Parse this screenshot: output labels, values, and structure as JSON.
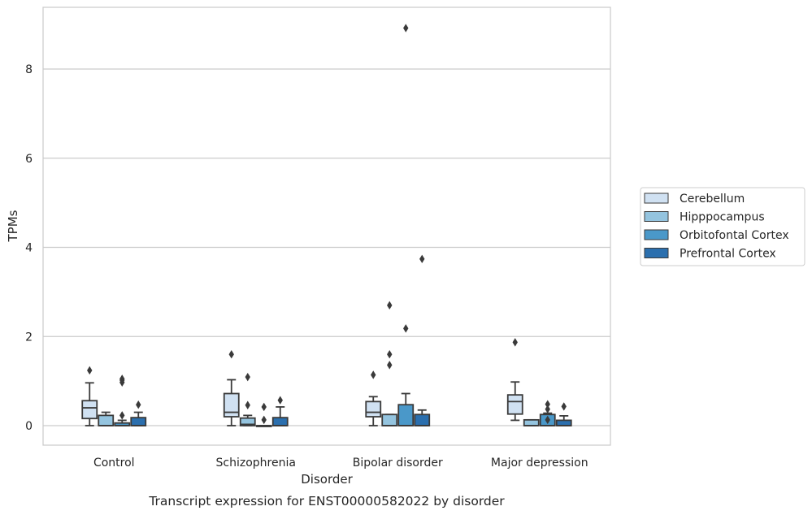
{
  "chart_data": {
    "type": "box",
    "title": "",
    "caption": "Transcript expression for ENST00000582022 by disorder",
    "xlabel": "Disorder",
    "ylabel": "TPMs",
    "ylim": [
      -0.42,
      9.3
    ],
    "yticks": [
      0,
      2,
      4,
      6,
      8
    ],
    "grid": true,
    "legend_position": "right",
    "categories": [
      "Control",
      "Schizophrenia",
      "Bipolar disorder",
      "Major depression"
    ],
    "series": [
      {
        "name": "Cerebellum",
        "color": "#d0e1f2",
        "boxes": [
          {
            "whislo": 0.0,
            "q1": 0.16,
            "med": 0.4,
            "q3": 0.56,
            "whishi": 0.96,
            "fliers": [
              1.24
            ]
          },
          {
            "whislo": 0.0,
            "q1": 0.2,
            "med": 0.3,
            "q3": 0.72,
            "whishi": 1.03,
            "fliers": [
              1.6
            ]
          },
          {
            "whislo": 0.0,
            "q1": 0.2,
            "med": 0.3,
            "q3": 0.54,
            "whishi": 0.65,
            "fliers": [
              1.14
            ]
          },
          {
            "whislo": 0.12,
            "q1": 0.26,
            "med": 0.54,
            "q3": 0.69,
            "whishi": 0.98,
            "fliers": [
              1.87
            ]
          }
        ]
      },
      {
        "name": "Hipppocampus",
        "color": "#94c4df",
        "boxes": [
          {
            "whislo": 0.0,
            "q1": 0.0,
            "med": 0.0,
            "q3": 0.23,
            "whishi": 0.3,
            "fliers": []
          },
          {
            "whislo": 0.0,
            "q1": 0.0,
            "med": 0.03,
            "q3": 0.17,
            "whishi": 0.23,
            "fliers": [
              0.46,
              1.09
            ]
          },
          {
            "whislo": 0.0,
            "q1": 0.0,
            "med": 0.0,
            "q3": 0.25,
            "whishi": 0.25,
            "fliers": [
              1.36,
              1.6,
              2.7
            ]
          },
          {
            "whislo": 0.0,
            "q1": 0.0,
            "med": 0.0,
            "q3": 0.13,
            "whishi": 0.13,
            "fliers": []
          }
        ]
      },
      {
        "name": "Orbitofontal Cortex",
        "color": "#4a98c9",
        "boxes": [
          {
            "whislo": 0.0,
            "q1": 0.0,
            "med": 0.0,
            "q3": 0.06,
            "whishi": 0.12,
            "fliers": [
              0.23,
              0.97,
              1.02,
              1.05
            ]
          },
          {
            "whislo": 0.0,
            "q1": 0.0,
            "med": 0.0,
            "q3": 0.0,
            "whishi": 0.0,
            "fliers": [
              0.13,
              0.42
            ]
          },
          {
            "whislo": 0.0,
            "q1": 0.0,
            "med": 0.0,
            "q3": 0.47,
            "whishi": 0.72,
            "fliers": [
              2.18,
              8.92
            ]
          },
          {
            "whislo": 0.0,
            "q1": 0.0,
            "med": 0.0,
            "q3": 0.25,
            "whishi": 0.28,
            "fliers": [
              0.13,
              0.37,
              0.48
            ]
          }
        ]
      },
      {
        "name": "Prefrontal Cortex",
        "color": "#2b6fae",
        "boxes": [
          {
            "whislo": 0.0,
            "q1": 0.0,
            "med": 0.0,
            "q3": 0.18,
            "whishi": 0.3,
            "fliers": [
              0.47
            ]
          },
          {
            "whislo": 0.0,
            "q1": 0.0,
            "med": 0.0,
            "q3": 0.18,
            "whishi": 0.42,
            "fliers": [
              0.57
            ]
          },
          {
            "whislo": 0.0,
            "q1": 0.0,
            "med": 0.0,
            "q3": 0.25,
            "whishi": 0.35,
            "fliers": [
              3.74
            ]
          },
          {
            "whislo": 0.0,
            "q1": 0.0,
            "med": 0.0,
            "q3": 0.12,
            "whishi": 0.22,
            "fliers": [
              0.43
            ]
          }
        ]
      }
    ]
  }
}
